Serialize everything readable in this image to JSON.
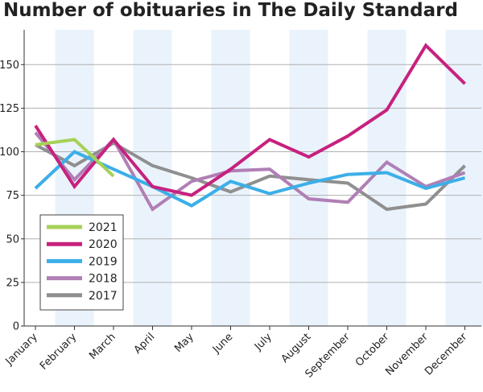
{
  "chart_data": {
    "type": "line",
    "title": "Number of obituaries in The Daily Standard",
    "xlabel": "",
    "ylabel": "",
    "categories": [
      "January",
      "February",
      "March",
      "April",
      "May",
      "June",
      "July",
      "August",
      "September",
      "October",
      "November",
      "December"
    ],
    "ylim": [
      0,
      170
    ],
    "yticks": [
      0,
      25,
      50,
      75,
      100,
      125,
      150
    ],
    "grid": "horizontal",
    "shaded_months": [
      "February",
      "April",
      "June",
      "August",
      "October",
      "December"
    ],
    "legend": "lower-left",
    "series": [
      {
        "name": "2021",
        "color": "#a6d157",
        "values": [
          104,
          107,
          86,
          null,
          null,
          null,
          null,
          null,
          null,
          null,
          null,
          null
        ]
      },
      {
        "name": "2020",
        "color": "#c7217f",
        "values": [
          115,
          80,
          107,
          80,
          75,
          90,
          107,
          97,
          109,
          124,
          161,
          139
        ]
      },
      {
        "name": "2019",
        "color": "#3bafe8",
        "values": [
          79,
          100,
          90,
          80,
          69,
          83,
          76,
          82,
          87,
          88,
          79,
          85
        ]
      },
      {
        "name": "2018",
        "color": "#b07fb5",
        "values": [
          111,
          84,
          107,
          67,
          83,
          89,
          90,
          73,
          71,
          94,
          80,
          88
        ]
      },
      {
        "name": "2017",
        "color": "#8f8f8f",
        "values": [
          104,
          92,
          105,
          92,
          85,
          77,
          86,
          84,
          82,
          67,
          70,
          92
        ]
      }
    ]
  }
}
